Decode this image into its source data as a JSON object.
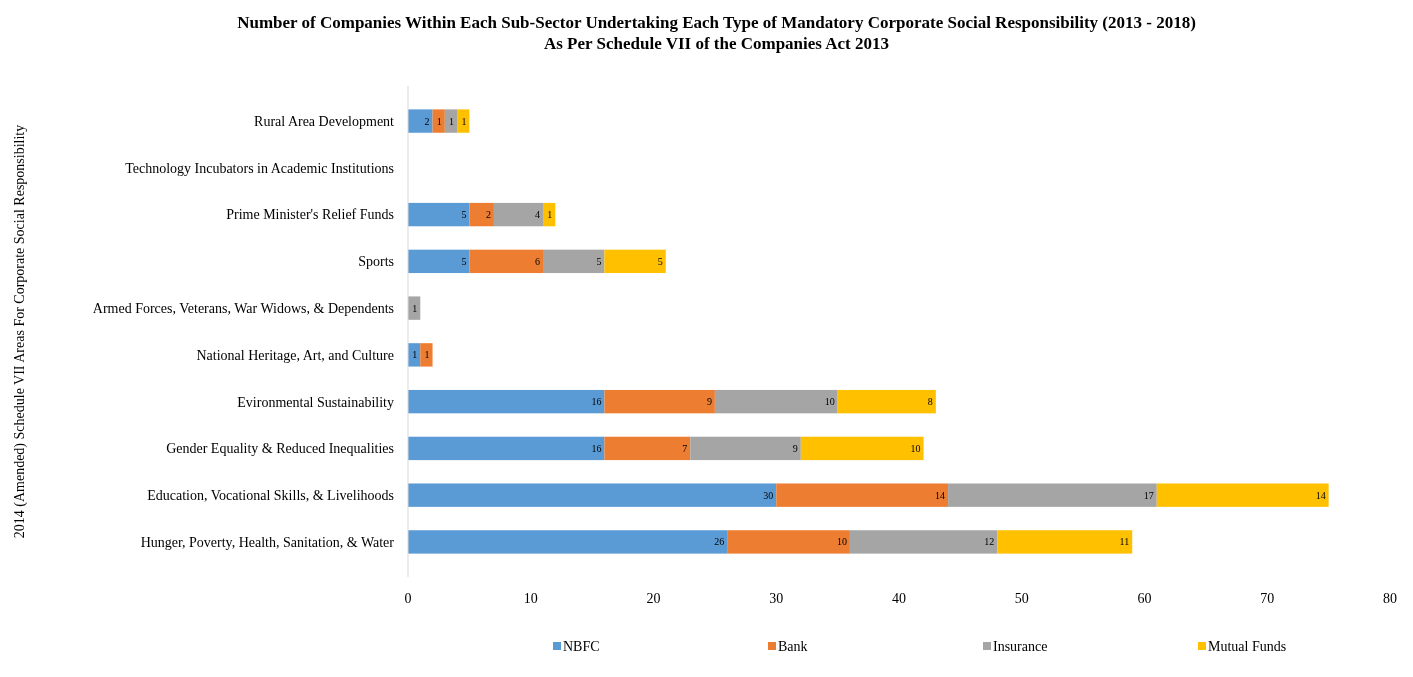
{
  "chart_data": {
    "type": "bar",
    "orientation": "horizontal",
    "stacked": true,
    "title": "Number of Companies Within Each Sub-Sector Undertaking Each Type of Mandatory Corporate Social Responsibility (2013 - 2018)",
    "subtitle": "As Per Schedule VII of the Companies Act 2013",
    "ylabel": "2014 (Amended) Schedule VII Areas For Corporate Social Responsibility",
    "categories": [
      "Rural Area Development",
      "Technology Incubators in Academic Institutions",
      "Prime Minister's Relief Funds",
      "Sports",
      "Armed Forces, Veterans, War Widows, & Dependents",
      "National Heritage, Art, and Culture",
      "Evironmental Sustainability",
      "Gender Equality & Reduced Inequalities",
      "Education, Vocational Skills, & Livelihoods",
      "Hunger, Poverty, Health, Sanitation, & Water"
    ],
    "series": [
      {
        "name": "NBFC",
        "color": "#5b9bd5",
        "values": [
          2,
          null,
          5,
          5,
          null,
          1,
          16,
          16,
          30,
          26
        ]
      },
      {
        "name": "Bank",
        "color": "#ed7d31",
        "values": [
          1,
          null,
          2,
          6,
          null,
          1,
          9,
          7,
          14,
          10
        ]
      },
      {
        "name": "Insurance",
        "color": "#a5a5a5",
        "values": [
          1,
          null,
          4,
          5,
          1,
          null,
          10,
          9,
          17,
          12
        ]
      },
      {
        "name": "Mutual Funds",
        "color": "#ffc000",
        "values": [
          1,
          null,
          1,
          5,
          null,
          null,
          8,
          10,
          14,
          11
        ]
      }
    ],
    "xlim": [
      0,
      80
    ],
    "xticks": [
      0,
      10,
      20,
      30,
      40,
      50,
      60,
      70,
      80
    ],
    "data_labels": true,
    "legend": "bottom",
    "grid": false
  }
}
